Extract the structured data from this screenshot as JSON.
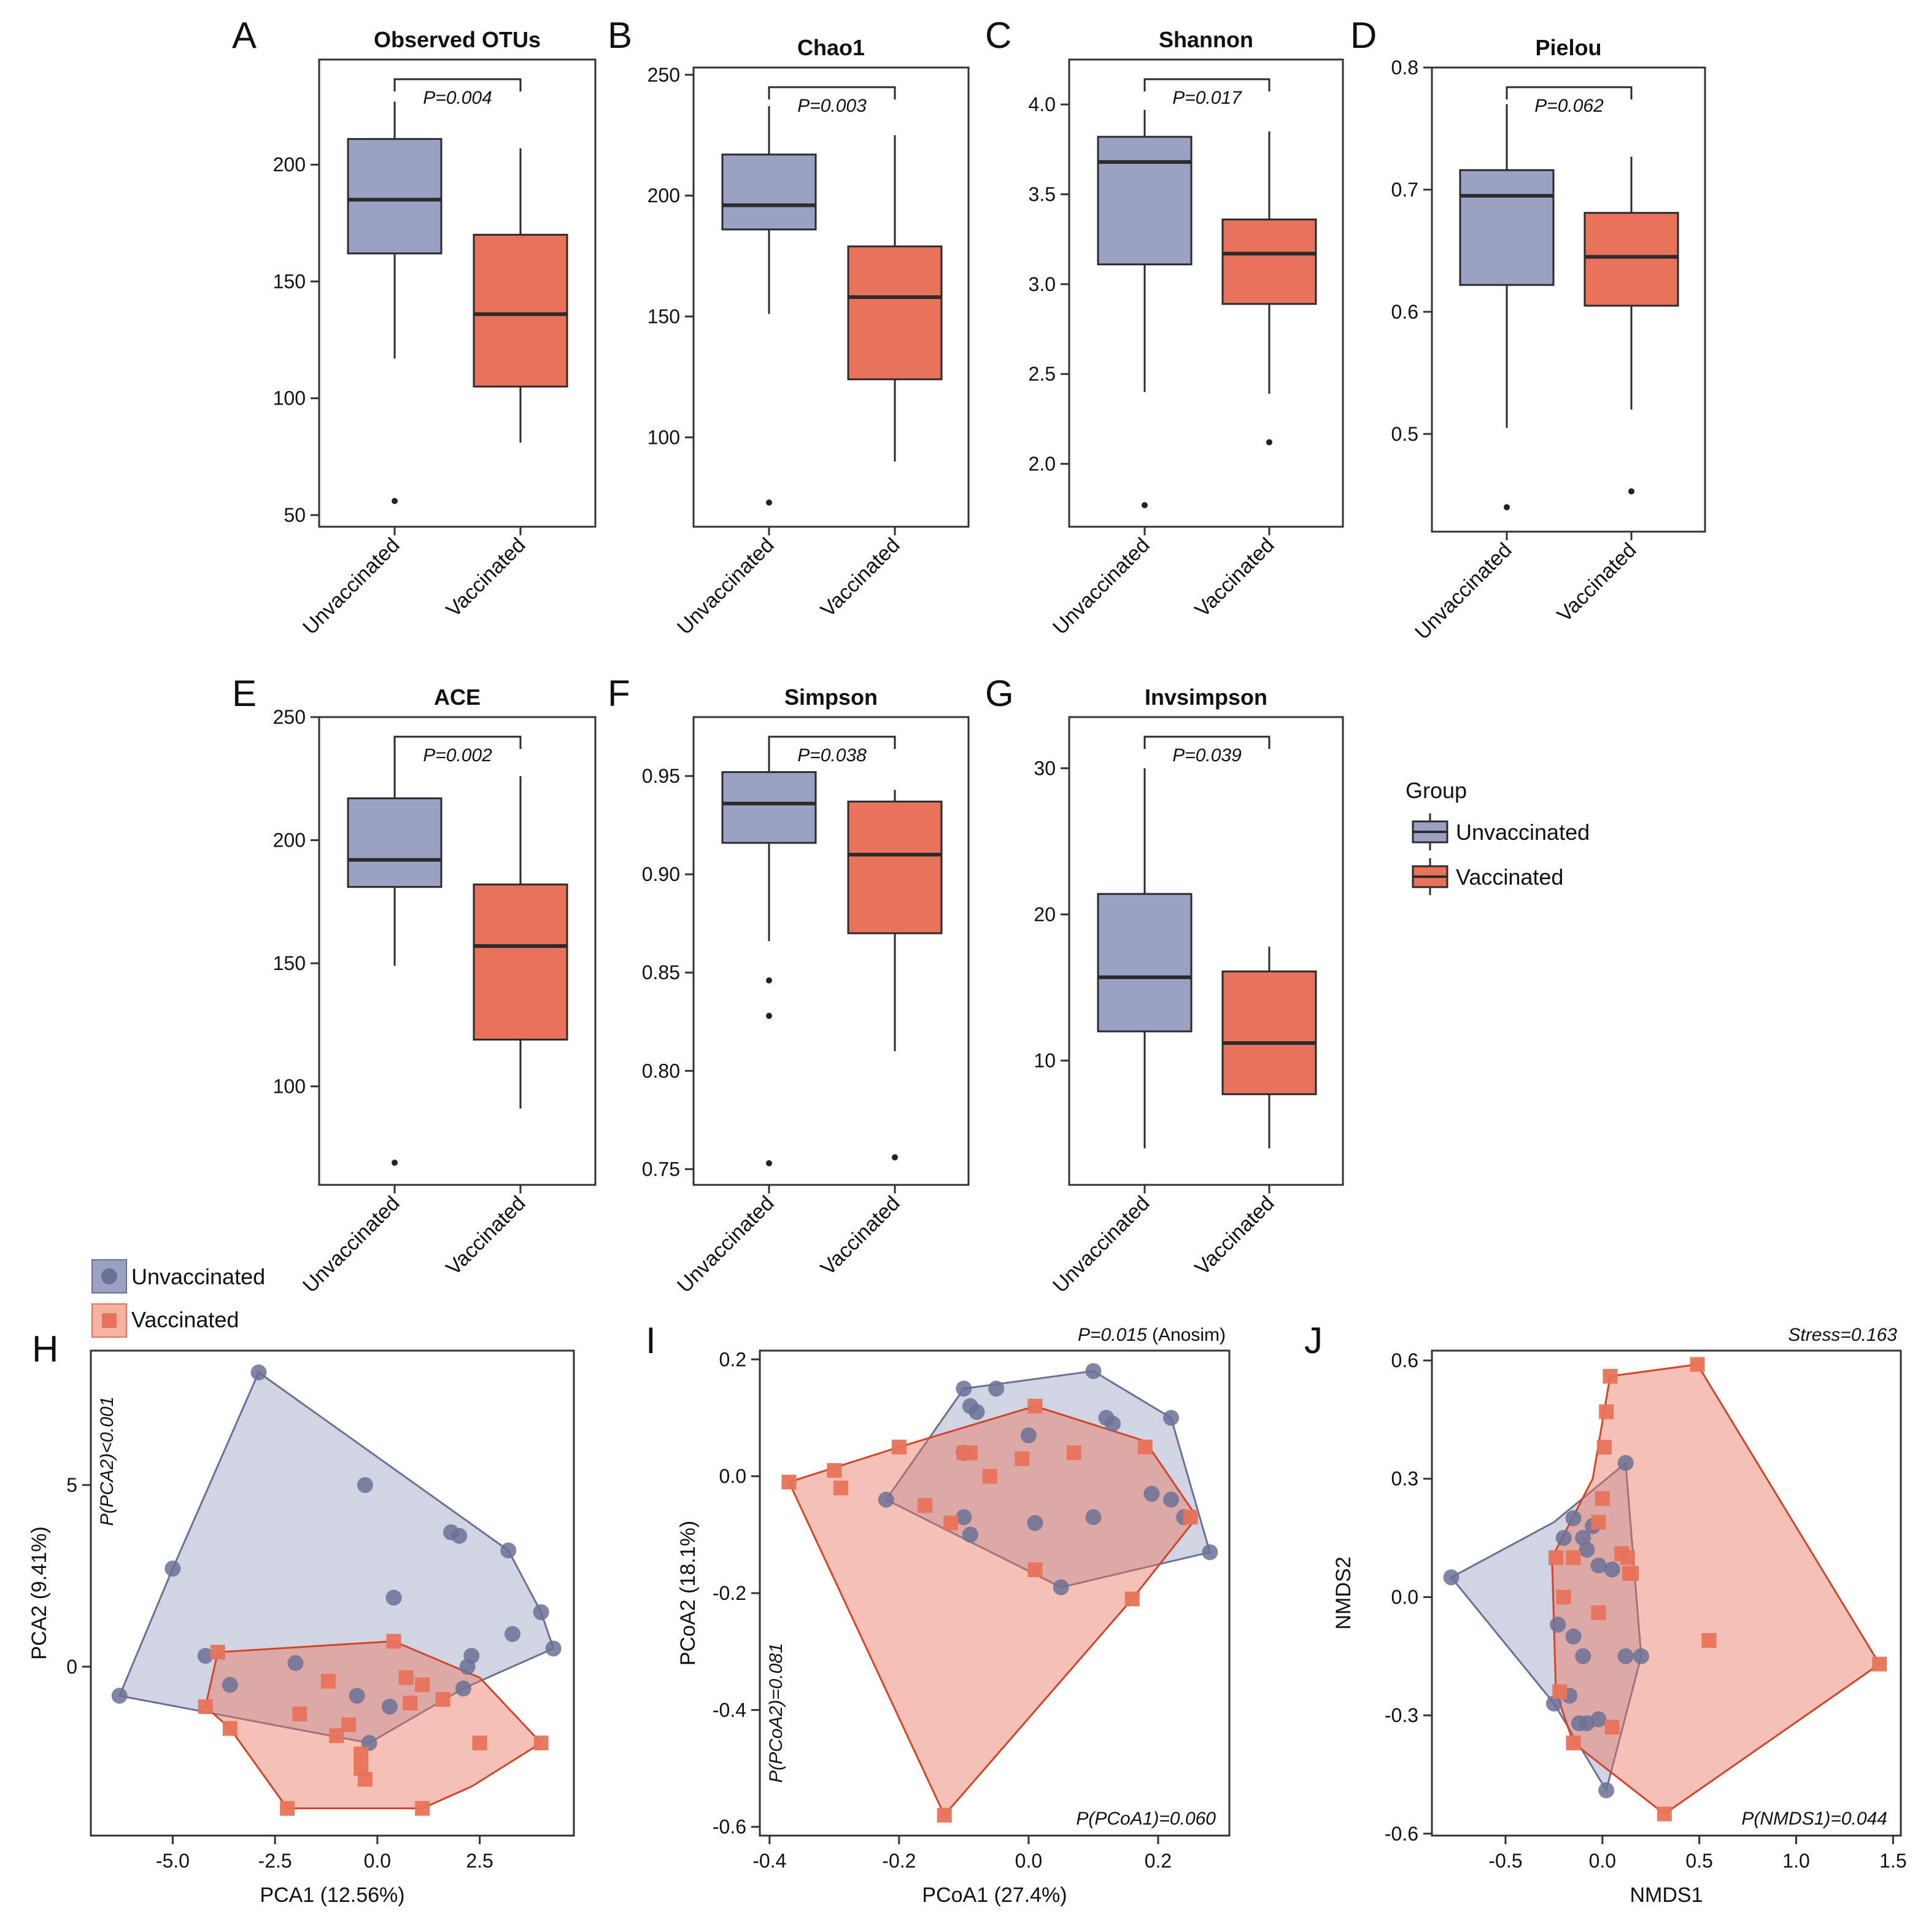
{
  "colors": {
    "unvacc": "#9aa1c2",
    "unvacc_edge": "#6b7196",
    "vacc": "#e8735a",
    "vacc_edge": "#d2452d",
    "axis": "#333333",
    "median": "#2b2b2b"
  },
  "legend_top": {
    "title": "Group",
    "items": [
      "Unvaccinated",
      "Vaccinated"
    ]
  },
  "legend_bottom": {
    "items": [
      "Unvaccinated",
      "Vaccinated"
    ]
  },
  "chart_data": [
    {
      "id": "A",
      "type": "box",
      "title": "Observed OTUs",
      "categories": [
        "Unvaccinated",
        "Vaccinated"
      ],
      "ylim": [
        45,
        245
      ],
      "yticks": [
        50,
        100,
        150,
        200
      ],
      "pvalue": "P=0.004",
      "boxes": [
        {
          "whislo": 117,
          "q1": 162,
          "med": 185,
          "q3": 211,
          "whishi": 227,
          "fliers": [
            56
          ]
        },
        {
          "whislo": 81,
          "q1": 105,
          "med": 136,
          "q3": 170,
          "whishi": 207,
          "fliers": []
        }
      ]
    },
    {
      "id": "B",
      "type": "box",
      "title": "Chao1",
      "categories": [
        "Unvaccinated",
        "Vaccinated"
      ],
      "ylim": [
        63,
        253
      ],
      "yticks": [
        100,
        150,
        200,
        250
      ],
      "pvalue": "P=0.003",
      "boxes": [
        {
          "whislo": 151,
          "q1": 186,
          "med": 196,
          "q3": 217,
          "whishi": 237,
          "fliers": [
            73
          ]
        },
        {
          "whislo": 90,
          "q1": 124,
          "med": 158,
          "q3": 179,
          "whishi": 225,
          "fliers": []
        }
      ]
    },
    {
      "id": "C",
      "type": "box",
      "title": "Shannon",
      "categories": [
        "Unvaccinated",
        "Vaccinated"
      ],
      "ylim": [
        1.65,
        4.25
      ],
      "yticks": [
        "2.0",
        "2.5",
        "3.0",
        "3.5",
        "4.0"
      ],
      "pvalue": "P=0.017",
      "boxes": [
        {
          "whislo": 2.4,
          "q1": 3.11,
          "med": 3.68,
          "q3": 3.82,
          "whishi": 3.97,
          "fliers": [
            1.77
          ]
        },
        {
          "whislo": 2.39,
          "q1": 2.89,
          "med": 3.17,
          "q3": 3.36,
          "whishi": 3.85,
          "fliers": [
            2.12
          ]
        }
      ]
    },
    {
      "id": "D",
      "type": "box",
      "title": "Pielou",
      "categories": [
        "Unvaccinated",
        "Vaccinated"
      ],
      "ylim": [
        0.42,
        0.8
      ],
      "yticks": [
        "0.5",
        "0.6",
        "0.7",
        "0.8"
      ],
      "pvalue": "P=0.062",
      "boxes": [
        {
          "whislo": 0.505,
          "q1": 0.622,
          "med": 0.695,
          "q3": 0.716,
          "whishi": 0.77,
          "fliers": [
            0.44
          ]
        },
        {
          "whislo": 0.52,
          "q1": 0.605,
          "med": 0.645,
          "q3": 0.681,
          "whishi": 0.727,
          "fliers": [
            0.453
          ]
        }
      ]
    },
    {
      "id": "E",
      "type": "box",
      "title": "ACE",
      "categories": [
        "Unvaccinated",
        "Vaccinated"
      ],
      "ylim": [
        60,
        250
      ],
      "yticks": [
        100,
        150,
        200,
        250
      ],
      "pvalue": "P=0.002",
      "boxes": [
        {
          "whislo": 149,
          "q1": 181,
          "med": 192,
          "q3": 217,
          "whishi": 237,
          "fliers": [
            69
          ]
        },
        {
          "whislo": 91,
          "q1": 119,
          "med": 157,
          "q3": 182,
          "whishi": 226,
          "fliers": []
        }
      ]
    },
    {
      "id": "F",
      "type": "box",
      "title": "Simpson",
      "categories": [
        "Unvaccinated",
        "Vaccinated"
      ],
      "ylim": [
        0.742,
        0.98
      ],
      "yticks": [
        "0.75",
        "0.80",
        "0.85",
        "0.90",
        "0.95"
      ],
      "pvalue": "P=0.038",
      "boxes": [
        {
          "whislo": 0.866,
          "q1": 0.916,
          "med": 0.936,
          "q3": 0.952,
          "whishi": 0.965,
          "fliers": [
            0.846,
            0.828,
            0.753
          ]
        },
        {
          "whislo": 0.81,
          "q1": 0.87,
          "med": 0.91,
          "q3": 0.937,
          "whishi": 0.943,
          "fliers": [
            0.756
          ]
        }
      ]
    },
    {
      "id": "G",
      "type": "box",
      "title": "Invsimpson",
      "categories": [
        "Unvaccinated",
        "Vaccinated"
      ],
      "ylim": [
        1.5,
        33.5
      ],
      "yticks": [
        10,
        20,
        30
      ],
      "pvalue": "P=0.039",
      "boxes": [
        {
          "whislo": 4,
          "q1": 12,
          "med": 15.7,
          "q3": 21.4,
          "whishi": 30,
          "fliers": []
        },
        {
          "whislo": 4,
          "q1": 7.7,
          "med": 11.2,
          "q3": 16.1,
          "whishi": 17.8,
          "fliers": []
        }
      ]
    },
    {
      "id": "H",
      "type": "scatter",
      "xlabel": "PCA1 (12.56%)",
      "ylabel": "PCA2 (9.41%)",
      "xlim": [
        -7.0,
        4.8
      ],
      "ylim": [
        -4.65,
        8.7
      ],
      "xticks": [
        "-5.0",
        "-2.5",
        "0.0",
        "2.5"
      ],
      "yticks": [
        0,
        5
      ],
      "annotations": {
        "rot_left": "P(PCA2)<0.001"
      },
      "series": [
        {
          "name": "Unvaccinated",
          "marker": "circle",
          "x": [
            -2.9,
            -5.0,
            -6.3,
            -4.2,
            -3.6,
            -2.0,
            -0.3,
            0.4,
            -0.5,
            1.8,
            2.0,
            3.2,
            4.0,
            4.3,
            3.3,
            2.2,
            2.3,
            2.1,
            0.3,
            -0.2
          ],
          "y": [
            8.1,
            2.7,
            -0.8,
            0.3,
            -0.5,
            0.1,
            5.0,
            1.9,
            -0.8,
            3.7,
            3.6,
            3.2,
            1.5,
            0.5,
            0.9,
            0.0,
            0.3,
            -0.6,
            -1.1,
            -2.1
          ],
          "hull": [
            [
              -2.9,
              8.1
            ],
            [
              3.2,
              3.2
            ],
            [
              4.0,
              1.5
            ],
            [
              4.3,
              0.5
            ],
            [
              2.1,
              -0.6
            ],
            [
              -0.2,
              -2.1
            ],
            [
              -6.3,
              -0.8
            ],
            [
              -5.0,
              2.7
            ]
          ]
        },
        {
          "name": "Vaccinated",
          "marker": "square",
          "x": [
            -2.2,
            1.1,
            -0.3,
            -4.2,
            -3.9,
            -3.6,
            -1.9,
            -1.2,
            -1.0,
            -0.7,
            -0.4,
            0.4,
            0.7,
            0.8,
            1.1,
            1.6,
            2.5,
            4.0,
            -0.4
          ],
          "y": [
            -3.9,
            -3.9,
            -3.1,
            -1.1,
            0.4,
            -1.7,
            -1.3,
            -0.4,
            -1.9,
            -1.6,
            -2.4,
            0.7,
            -0.3,
            -1.0,
            -0.5,
            -0.9,
            -2.1,
            -2.1,
            -2.8
          ],
          "hull": [
            [
              -3.9,
              0.4
            ],
            [
              0.4,
              0.7
            ],
            [
              2.5,
              -0.3
            ],
            [
              4.0,
              -2.1
            ],
            [
              2.3,
              -3.3
            ],
            [
              1.1,
              -3.9
            ],
            [
              -2.2,
              -3.9
            ],
            [
              -3.6,
              -1.7
            ],
            [
              -4.2,
              -1.1
            ]
          ]
        }
      ]
    },
    {
      "id": "I",
      "type": "scatter",
      "xlabel": "PCoA1 (27.4%)",
      "ylabel": "PCoA2 (18.1%)",
      "xlim": [
        -0.415,
        0.31
      ],
      "ylim": [
        -0.615,
        0.215
      ],
      "xticks": [
        "-0.4",
        "-0.2",
        "0.0",
        "0.2"
      ],
      "yticks": [
        "-0.6",
        "-0.4",
        "-0.2",
        "0.0",
        "0.2"
      ],
      "annotations": {
        "top_right": "P=0.015",
        "top_right_suffix": " (Anosim)",
        "bottom_right": "P(PCoA1)=0.060",
        "rot_left": "P(PCoA2)=0.081"
      },
      "series": [
        {
          "name": "Unvaccinated",
          "marker": "circle",
          "x": [
            -0.1,
            -0.05,
            0.1,
            0.22,
            0.28,
            0.05,
            -0.22,
            -0.09,
            -0.1,
            0.0,
            0.12,
            0.13,
            0.19,
            0.22,
            0.24,
            0.1,
            0.01,
            -0.09,
            -0.08,
            -0.1
          ],
          "y": [
            0.15,
            0.15,
            0.18,
            0.1,
            -0.13,
            -0.19,
            -0.04,
            0.12,
            0.04,
            0.07,
            0.1,
            0.09,
            -0.03,
            -0.04,
            -0.07,
            -0.07,
            -0.08,
            -0.1,
            0.11,
            -0.07
          ],
          "hull": [
            [
              -0.1,
              0.15
            ],
            [
              0.1,
              0.18
            ],
            [
              0.22,
              0.1
            ],
            [
              0.28,
              -0.13
            ],
            [
              0.05,
              -0.19
            ],
            [
              -0.22,
              -0.04
            ]
          ]
        },
        {
          "name": "Vaccinated",
          "marker": "square",
          "x": [
            -0.37,
            -0.3,
            -0.29,
            -0.2,
            -0.16,
            -0.12,
            -0.1,
            -0.06,
            -0.01,
            0.01,
            0.07,
            0.18,
            0.16,
            0.25,
            -0.13,
            0.01,
            -0.09
          ],
          "y": [
            -0.01,
            0.01,
            -0.02,
            0.05,
            -0.05,
            -0.08,
            0.04,
            0.0,
            0.03,
            0.12,
            0.04,
            0.05,
            -0.21,
            -0.07,
            -0.58,
            -0.16,
            0.04
          ],
          "hull": [
            [
              -0.37,
              -0.01
            ],
            [
              -0.2,
              0.05
            ],
            [
              0.01,
              0.12
            ],
            [
              0.18,
              0.06
            ],
            [
              0.26,
              -0.07
            ],
            [
              0.16,
              -0.21
            ],
            [
              -0.13,
              -0.58
            ]
          ]
        }
      ]
    },
    {
      "id": "J",
      "type": "scatter",
      "xlabel": "NMDS1",
      "ylabel": "NMDS2",
      "xlim": [
        -0.88,
        1.54
      ],
      "ylim": [
        -0.605,
        0.625
      ],
      "xticks": [
        "-0.5",
        "0.0",
        "0.5",
        "1.0",
        "1.5"
      ],
      "yticks": [
        "-0.6",
        "-0.3",
        "0.0",
        "0.3",
        "0.6"
      ],
      "annotations": {
        "top_right": "Stress=0.163",
        "bottom_right": "P(NMDS1)=0.044"
      },
      "series": [
        {
          "name": "Unvaccinated",
          "marker": "circle",
          "x": [
            -0.78,
            0.12,
            0.02,
            -0.25,
            -0.15,
            -0.1,
            -0.05,
            -0.23,
            -0.2,
            -0.17,
            -0.15,
            -0.1,
            -0.08,
            -0.02,
            0.05,
            0.12,
            0.2,
            -0.12,
            -0.08,
            -0.02
          ],
          "y": [
            0.05,
            0.34,
            -0.49,
            -0.27,
            0.2,
            0.15,
            0.18,
            -0.07,
            0.15,
            -0.25,
            -0.1,
            -0.15,
            0.12,
            0.08,
            0.07,
            -0.15,
            -0.15,
            -0.32,
            -0.32,
            -0.31
          ],
          "hull": [
            [
              -0.78,
              0.05
            ],
            [
              -0.25,
              0.19
            ],
            [
              0.12,
              0.34
            ],
            [
              0.2,
              -0.15
            ],
            [
              0.02,
              -0.49
            ],
            [
              -0.25,
              -0.27
            ]
          ]
        },
        {
          "name": "Vaccinated",
          "marker": "square",
          "x": [
            0.04,
            0.49,
            1.43,
            0.32,
            -0.15,
            -0.22,
            -0.24,
            0.02,
            0.01,
            0.0,
            -0.02,
            0.1,
            0.13,
            0.15,
            0.55,
            -0.02,
            0.05,
            -0.15,
            0.14,
            -0.2
          ],
          "y": [
            0.56,
            0.59,
            -0.17,
            -0.55,
            -0.37,
            -0.24,
            0.1,
            0.47,
            0.38,
            0.25,
            0.19,
            0.11,
            0.1,
            0.06,
            -0.11,
            -0.04,
            -0.33,
            0.1,
            0.06,
            0.0
          ],
          "hull": [
            [
              0.04,
              0.56
            ],
            [
              0.49,
              0.59
            ],
            [
              1.43,
              -0.17
            ],
            [
              0.32,
              -0.55
            ],
            [
              -0.15,
              -0.37
            ],
            [
              -0.24,
              -0.24
            ],
            [
              -0.26,
              0.1
            ],
            [
              -0.05,
              0.3
            ]
          ]
        }
      ]
    }
  ]
}
